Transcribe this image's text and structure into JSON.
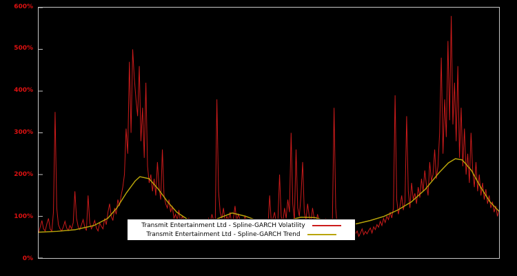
{
  "chart_data": {
    "type": "line",
    "title": "",
    "xlabel": "",
    "ylabel": "",
    "ylim": [
      0,
      600
    ],
    "yticks": [
      "0%",
      "100%",
      "200%",
      "300%",
      "400%",
      "500%",
      "600%"
    ],
    "ytick_values": [
      0,
      100,
      200,
      300,
      400,
      500,
      600
    ],
    "grid": false,
    "legend_position": "bottom-center",
    "background_color": "#000000",
    "axis_color": "#c8c8c8",
    "tick_label_color": "#dd1111",
    "series": [
      {
        "name": "Transmit Entertainment Ltd - Spline-GARCH Volatility",
        "color": "#cc1b1b",
        "style": "spiky-line",
        "values": [
          60,
          75,
          90,
          70,
          65,
          82,
          95,
          70,
          64,
          110,
          350,
          120,
          80,
          70,
          65,
          75,
          88,
          72,
          66,
          78,
          70,
          85,
          160,
          95,
          75,
          68,
          80,
          92,
          74,
          66,
          150,
          85,
          70,
          78,
          90,
          72,
          65,
          84,
          76,
          70,
          95,
          80,
          110,
          130,
          100,
          90,
          120,
          105,
          140,
          125,
          150,
          170,
          200,
          310,
          250,
          470,
          300,
          500,
          430,
          380,
          340,
          460,
          280,
          360,
          240,
          420,
          220,
          180,
          200,
          160,
          190,
          150,
          230,
          170,
          140,
          260,
          150,
          130,
          120,
          140,
          110,
          125,
          95,
          105,
          90,
          115,
          85,
          100,
          92,
          80,
          88,
          95,
          78,
          85,
          70,
          92,
          80,
          75,
          88,
          72,
          90,
          82,
          76,
          95,
          85,
          105,
          90,
          80,
          380,
          160,
          110,
          95,
          120,
          85,
          100,
          90,
          110,
          80,
          95,
          125,
          88,
          105,
          92,
          78,
          85,
          100,
          90,
          75,
          82,
          95,
          70,
          88,
          76,
          92,
          80,
          68,
          85,
          74,
          90,
          78,
          150,
          85,
          95,
          110,
          80,
          90,
          200,
          100,
          85,
          120,
          95,
          140,
          110,
          300,
          130,
          90,
          260,
          120,
          100,
          150,
          230,
          110,
          90,
          130,
          100,
          85,
          120,
          95,
          80,
          105,
          90,
          75,
          85,
          70,
          95,
          80,
          65,
          75,
          88,
          360,
          120,
          70,
          60,
          55,
          65,
          58,
          52,
          60,
          56,
          50,
          62,
          55,
          58,
          65,
          52,
          60,
          70,
          56,
          64,
          58,
          66,
          72,
          60,
          75,
          68,
          80,
          74,
          88,
          78,
          95,
          85,
          100,
          92,
          110,
          96,
          120,
          390,
          140,
          105,
          125,
          150,
          115,
          135,
          340,
          160,
          120,
          180,
          140,
          155,
          130,
          170,
          145,
          190,
          160,
          210,
          175,
          150,
          230,
          185,
          200,
          260,
          190,
          220,
          300,
          480,
          250,
          380,
          290,
          520,
          330,
          580,
          320,
          420,
          280,
          460,
          240,
          360,
          220,
          310,
          200,
          250,
          180,
          300,
          210,
          170,
          230,
          160,
          200,
          150,
          180,
          140,
          165,
          130,
          150,
          120,
          135,
          110,
          125,
          100,
          115
        ]
      },
      {
        "name": "Transmit Entertainment Ltd - Spline-GARCH Trend",
        "color": "#b8a40a",
        "style": "smooth-line",
        "points": [
          [
            0.0,
            62
          ],
          [
            0.04,
            64
          ],
          [
            0.08,
            68
          ],
          [
            0.12,
            78
          ],
          [
            0.15,
            95
          ],
          [
            0.17,
            120
          ],
          [
            0.19,
            155
          ],
          [
            0.21,
            185
          ],
          [
            0.22,
            195
          ],
          [
            0.24,
            190
          ],
          [
            0.26,
            165
          ],
          [
            0.28,
            135
          ],
          [
            0.3,
            110
          ],
          [
            0.33,
            88
          ],
          [
            0.36,
            80
          ],
          [
            0.39,
            95
          ],
          [
            0.42,
            108
          ],
          [
            0.45,
            100
          ],
          [
            0.48,
            88
          ],
          [
            0.51,
            82
          ],
          [
            0.54,
            90
          ],
          [
            0.57,
            98
          ],
          [
            0.6,
            97
          ],
          [
            0.63,
            88
          ],
          [
            0.66,
            80
          ],
          [
            0.69,
            82
          ],
          [
            0.72,
            90
          ],
          [
            0.75,
            100
          ],
          [
            0.78,
            115
          ],
          [
            0.81,
            135
          ],
          [
            0.84,
            165
          ],
          [
            0.87,
            205
          ],
          [
            0.89,
            228
          ],
          [
            0.905,
            238
          ],
          [
            0.92,
            235
          ],
          [
            0.94,
            210
          ],
          [
            0.96,
            170
          ],
          [
            0.98,
            135
          ],
          [
            1.0,
            112
          ]
        ]
      }
    ]
  }
}
